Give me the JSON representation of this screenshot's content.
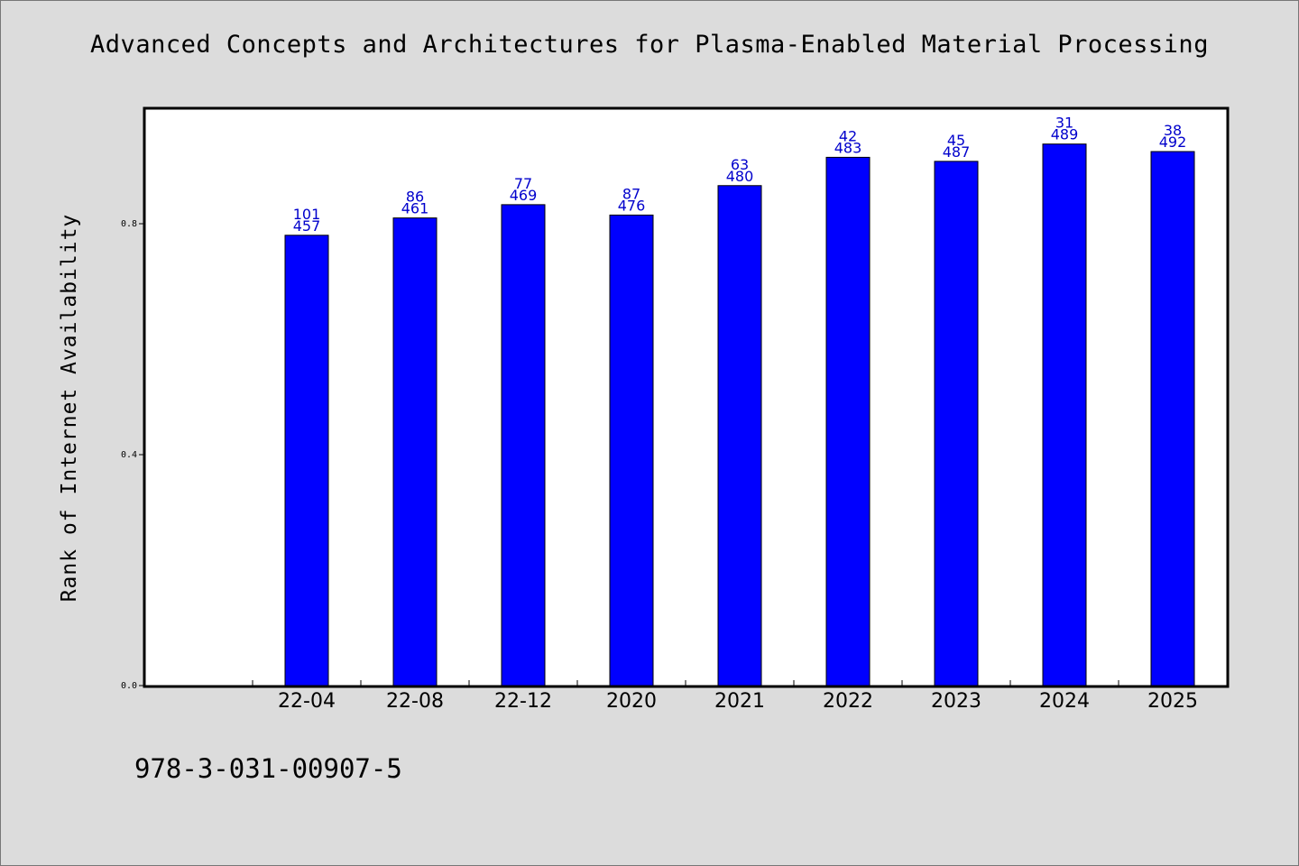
{
  "header": {
    "title": "Advanced Concepts and Architectures for Plasma-Enabled Material Processing"
  },
  "footer": {
    "isbn": "978-3-031-00907-5"
  },
  "colors": {
    "bar": "#0000ff",
    "bar_label": "#0000cc",
    "plot_background": "#ffffff",
    "page_background": "#dcdcdc"
  },
  "chart_data": {
    "type": "bar",
    "title": "Advanced Concepts and Architectures for Plasma-Enabled Material Processing",
    "xlabel": "",
    "ylabel": "Rank of Internet Availability",
    "categories": [
      "22-04",
      "22-08",
      "22-12",
      "2020",
      "2021",
      "2022",
      "2023",
      "2024",
      "2025"
    ],
    "values": [
      0.78,
      0.81,
      0.833,
      0.815,
      0.866,
      0.915,
      0.908,
      0.938,
      0.925
    ],
    "label_top": [
      "101",
      "86",
      "77",
      "87",
      "63",
      "42",
      "45",
      "31",
      "38"
    ],
    "label_bottom": [
      "457",
      "461",
      "469",
      "476",
      "480",
      "483",
      "487",
      "489",
      "492"
    ],
    "ylim": [
      0,
      1.0
    ],
    "yticks": [
      0.0,
      0.4,
      0.8
    ],
    "ytick_labels": [
      "0.0",
      "0.4",
      "0.8"
    ],
    "grid": false,
    "legend": "none"
  }
}
